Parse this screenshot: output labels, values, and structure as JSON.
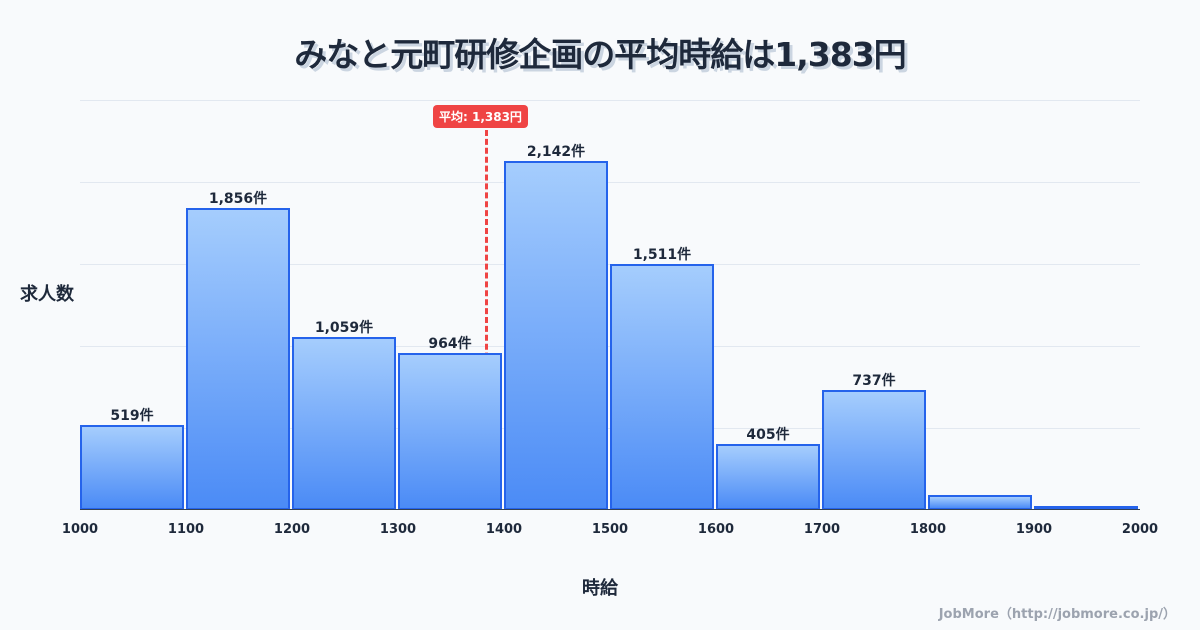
{
  "title": "みなと元町研修企画の平均時給は1,383円",
  "ylabel": "求人数",
  "xlabel": "時給",
  "avg_label": "平均: 1,383円",
  "footer": "JobMore（http://jobmore.co.jp/）",
  "chart_data": {
    "type": "bar",
    "title": "みなと元町研修企画の平均時給は1,383円",
    "xlabel": "時給",
    "ylabel": "求人数",
    "categories": [
      "1000-1100",
      "1100-1200",
      "1200-1300",
      "1300-1400",
      "1400-1500",
      "1500-1600",
      "1600-1700",
      "1700-1800",
      "1800-1900",
      "1900-2000"
    ],
    "values": [
      519,
      1856,
      1059,
      964,
      2142,
      1511,
      405,
      737,
      92,
      25
    ],
    "labels": [
      "519件",
      "1,856件",
      "1,059件",
      "964件",
      "2,142件",
      "1,511件",
      "405件",
      "737件",
      "",
      ""
    ],
    "x_ticks": [
      "1000",
      "1100",
      "1200",
      "1300",
      "1400",
      "1500",
      "1600",
      "1700",
      "1800",
      "1900",
      "2000"
    ],
    "average": 1383,
    "ylim": [
      0,
      2516
    ]
  }
}
